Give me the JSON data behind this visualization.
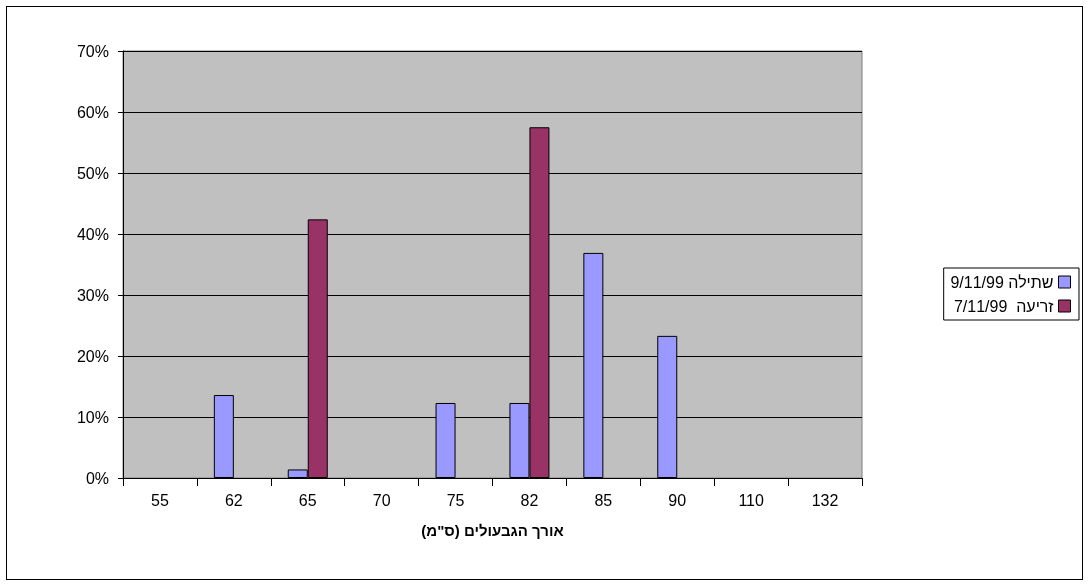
{
  "chart_data": {
    "type": "bar",
    "xlabel": "אורך הגבעולים (ס\"מ)",
    "categories": [
      "55",
      "62",
      "65",
      "70",
      "75",
      "82",
      "85",
      "90",
      "110",
      "132"
    ],
    "series": [
      {
        "name": "שתילה 9/11/99",
        "color": "#9999ff",
        "values": [
          0,
          13.6,
          1.4,
          0,
          12.3,
          12.3,
          36.9,
          23.3,
          0,
          0
        ]
      },
      {
        "name": "זריעה  7/11/99",
        "color": "#993366",
        "values": [
          0,
          0,
          42.4,
          0,
          0,
          57.5,
          0,
          0,
          0,
          0
        ]
      }
    ],
    "ylim": [
      0,
      70
    ],
    "yticks": [
      {
        "value": 0,
        "label": "0%"
      },
      {
        "value": 10,
        "label": "10%"
      },
      {
        "value": 20,
        "label": "20%"
      },
      {
        "value": 30,
        "label": "30%"
      },
      {
        "value": 40,
        "label": "40%"
      },
      {
        "value": 50,
        "label": "50%"
      },
      {
        "value": 60,
        "label": "60%"
      },
      {
        "value": 70,
        "label": "70%"
      }
    ],
    "grid": "y",
    "legend": "right"
  }
}
